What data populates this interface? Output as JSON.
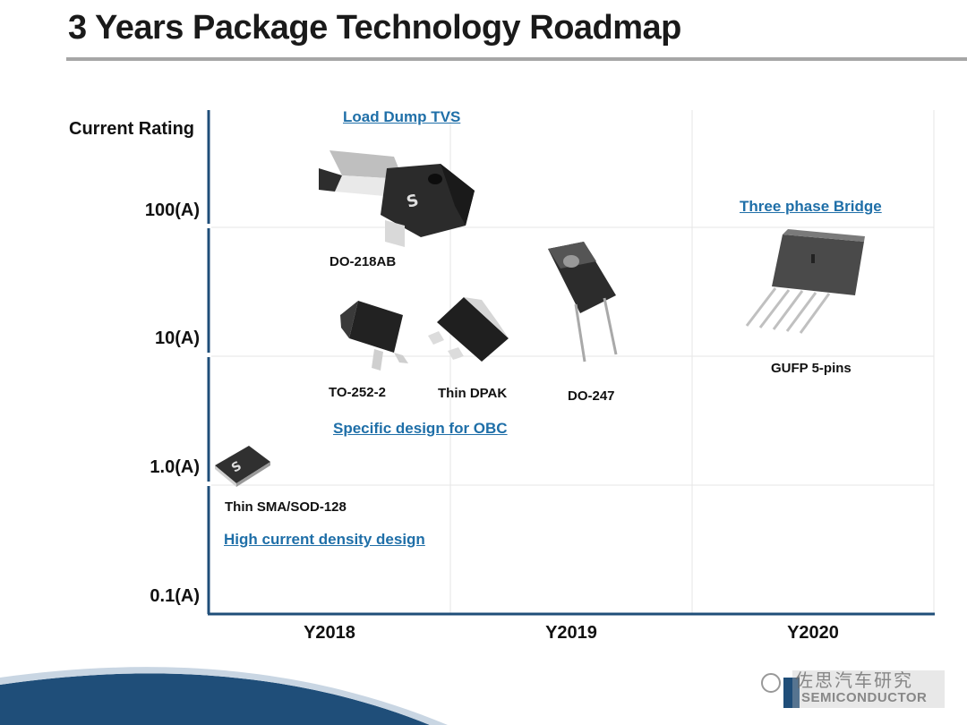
{
  "title": "3 Years Package Technology Roadmap",
  "y_axis_title": "Current Rating",
  "y_ticks": [
    "100(A)",
    "10(A)",
    "1.0(A)",
    "0.1(A)"
  ],
  "x_ticks": [
    "Y2018",
    "Y2019",
    "Y2020"
  ],
  "packages": {
    "do218ab": "DO-218AB",
    "to252": "TO-252-2",
    "thin_dpak": "Thin DPAK",
    "do247": "DO-247",
    "gufp": "GUFP 5-pins",
    "thin_sma": "Thin SMA/SOD-128"
  },
  "notes": {
    "load_dump": "Load Dump TVS",
    "three_phase": "Three phase Bridge",
    "obc": "Specific design for OBC",
    "high_current": "High current density design"
  },
  "watermark": {
    "text": "佐思汽车研究",
    "brand": "SEMICONDUCTOR"
  },
  "colors": {
    "axis": "#1f4e79",
    "grid": "#e6e6e6",
    "link": "#1f6fa8",
    "title_rule": "#a6a6a6"
  }
}
